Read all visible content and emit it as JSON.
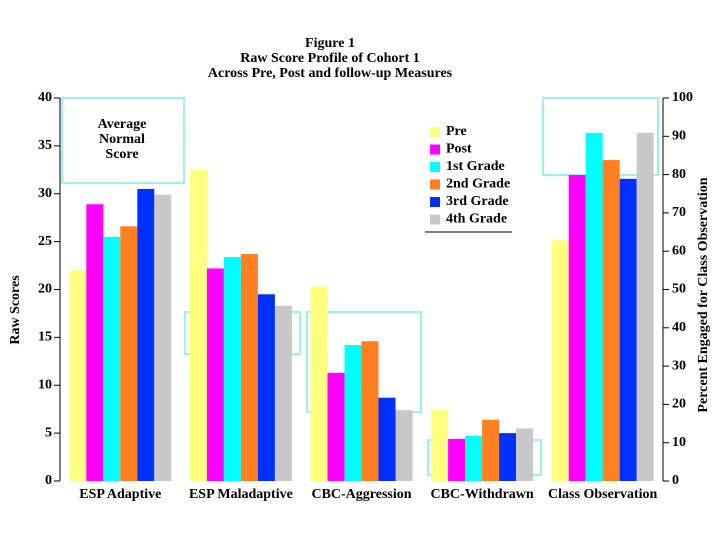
{
  "chart_data": [
    {
      "type": "bar",
      "title": [
        "Figure 1",
        "Raw Score Profile of Cohort 1",
        "Across Pre, Post and follow-up Measures"
      ],
      "y_label": "Raw Scores",
      "annotation": [
        "Average",
        "Normal",
        "Score"
      ],
      "categories": [
        "ESP Adaptive",
        "ESP Maladaptive",
        "CBC-Aggression",
        "CBC-Withdrawn"
      ],
      "series": [
        {
          "name": "Pre",
          "color": "#ffff80",
          "values": [
            22.0,
            32.5,
            20.3,
            7.4
          ]
        },
        {
          "name": "Post",
          "color": "#ff00ff",
          "values": [
            28.9,
            22.2,
            11.3,
            4.4
          ]
        },
        {
          "name": "1st Grade",
          "color": "#00ffff",
          "values": [
            25.5,
            23.4,
            14.2,
            4.7
          ]
        },
        {
          "name": "2nd Grade",
          "color": "#ff8020",
          "values": [
            26.6,
            23.7,
            14.6,
            6.4
          ]
        },
        {
          "name": "3rd Grade",
          "color": "#0030ff",
          "values": [
            30.5,
            19.5,
            8.7,
            5.0
          ]
        },
        {
          "name": "4th Grade",
          "color": "#c8c8c8",
          "values": [
            29.9,
            18.3,
            7.4,
            5.5
          ]
        }
      ],
      "ylim": [
        0,
        40
      ],
      "yticks": [
        0,
        5,
        10,
        15,
        20,
        25,
        30,
        35,
        40
      ]
    },
    {
      "type": "bar",
      "y2_label": "Percent Engaged for Class Observation",
      "categories": [
        "Class Observation"
      ],
      "series": [
        {
          "color": "#ffff80",
          "axis": "y2",
          "values": [
            62.9
          ]
        },
        {
          "color": "#ff00ff",
          "axis": "y2",
          "values": [
            79.9
          ]
        },
        {
          "color": "#00ffff",
          "axis": "y2",
          "values": [
            90.9
          ]
        },
        {
          "color": "#ff8020",
          "axis": "y2",
          "values": [
            83.8
          ]
        },
        {
          "color": "#0030ff",
          "axis": "y2",
          "values": [
            78.9
          ]
        },
        {
          "color": "#c8c8c8",
          "axis": "y2",
          "values": [
            90.9
          ]
        }
      ],
      "y2lim": [
        0,
        100
      ],
      "y2ticks": [
        0,
        10,
        20,
        30,
        40,
        50,
        60,
        70,
        80,
        90,
        100
      ]
    }
  ]
}
